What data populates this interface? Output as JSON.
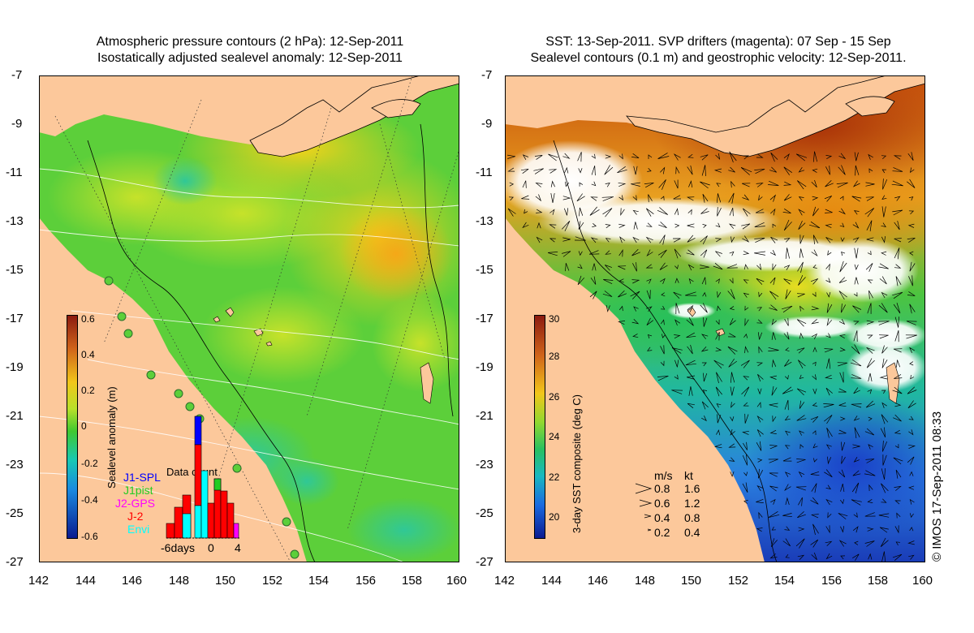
{
  "left_panel": {
    "title_line1": "Atmospheric pressure contours (2 hPa): 12-Sep-2011",
    "title_line2": "Isostatically adjusted sealevel anomaly: 12-Sep-2011",
    "y_ticks": [
      "-7",
      "-9",
      "-11",
      "-13",
      "-15",
      "-17",
      "-19",
      "-21",
      "-23",
      "-25",
      "-27"
    ],
    "x_ticks": [
      "142",
      "144",
      "146",
      "148",
      "150",
      "152",
      "154",
      "156",
      "158",
      "160"
    ],
    "colorbar": {
      "label": "Sealevel anomaly (m)",
      "ticks": [
        "0.6",
        "0.4",
        "0.2",
        "0",
        "-0.2",
        "-0.4",
        "-0.6"
      ]
    },
    "missions": [
      {
        "name": "J1-SPL",
        "color": "#0000ff"
      },
      {
        "name": "J1pist",
        "color": "#22cc22"
      },
      {
        "name": "J2-GPS",
        "color": "#ff00ff"
      },
      {
        "name": "J-2",
        "color": "#ff0000"
      },
      {
        "name": "Envi",
        "color": "#00ffff"
      }
    ],
    "histogram": {
      "title": "Data count",
      "x_left": "-6days",
      "x_mid": "0",
      "x_right": "4"
    }
  },
  "right_panel": {
    "title_line1": "SST: 13-Sep-2011. SVP drifters (magenta): 07 Sep - 15 Sep",
    "title_line2": "Sealevel contours (0.1 m) and geostrophic velocity: 12-Sep-2011.",
    "y_ticks": [
      "-7",
      "-9",
      "-11",
      "-13",
      "-15",
      "-17",
      "-19",
      "-21",
      "-23",
      "-25",
      "-27"
    ],
    "x_ticks": [
      "142",
      "144",
      "146",
      "148",
      "150",
      "152",
      "154",
      "156",
      "158",
      "160"
    ],
    "colorbar": {
      "label": "3-day SST composite (deg C)",
      "ticks": [
        "30",
        "28",
        "26",
        "24",
        "22",
        "20"
      ]
    },
    "velocity_legend": {
      "header_ms": "m/s",
      "header_kt": "kt",
      "rows": [
        {
          "ms": "0.8",
          "kt": "1.6"
        },
        {
          "ms": "0.6",
          "kt": "1.2"
        },
        {
          "ms": "0.4",
          "kt": "0.8"
        },
        {
          "ms": "0.2",
          "kt": "0.4"
        }
      ]
    }
  },
  "copyright": "© IMOS 17-Sep-2011 08:33",
  "colors": {
    "land": "#fcc89b",
    "sla_ocean": "#5ccf3a",
    "sst_warm": "#d04010",
    "sst_cool": "#1f6de0",
    "cloud": "#ffffff"
  }
}
